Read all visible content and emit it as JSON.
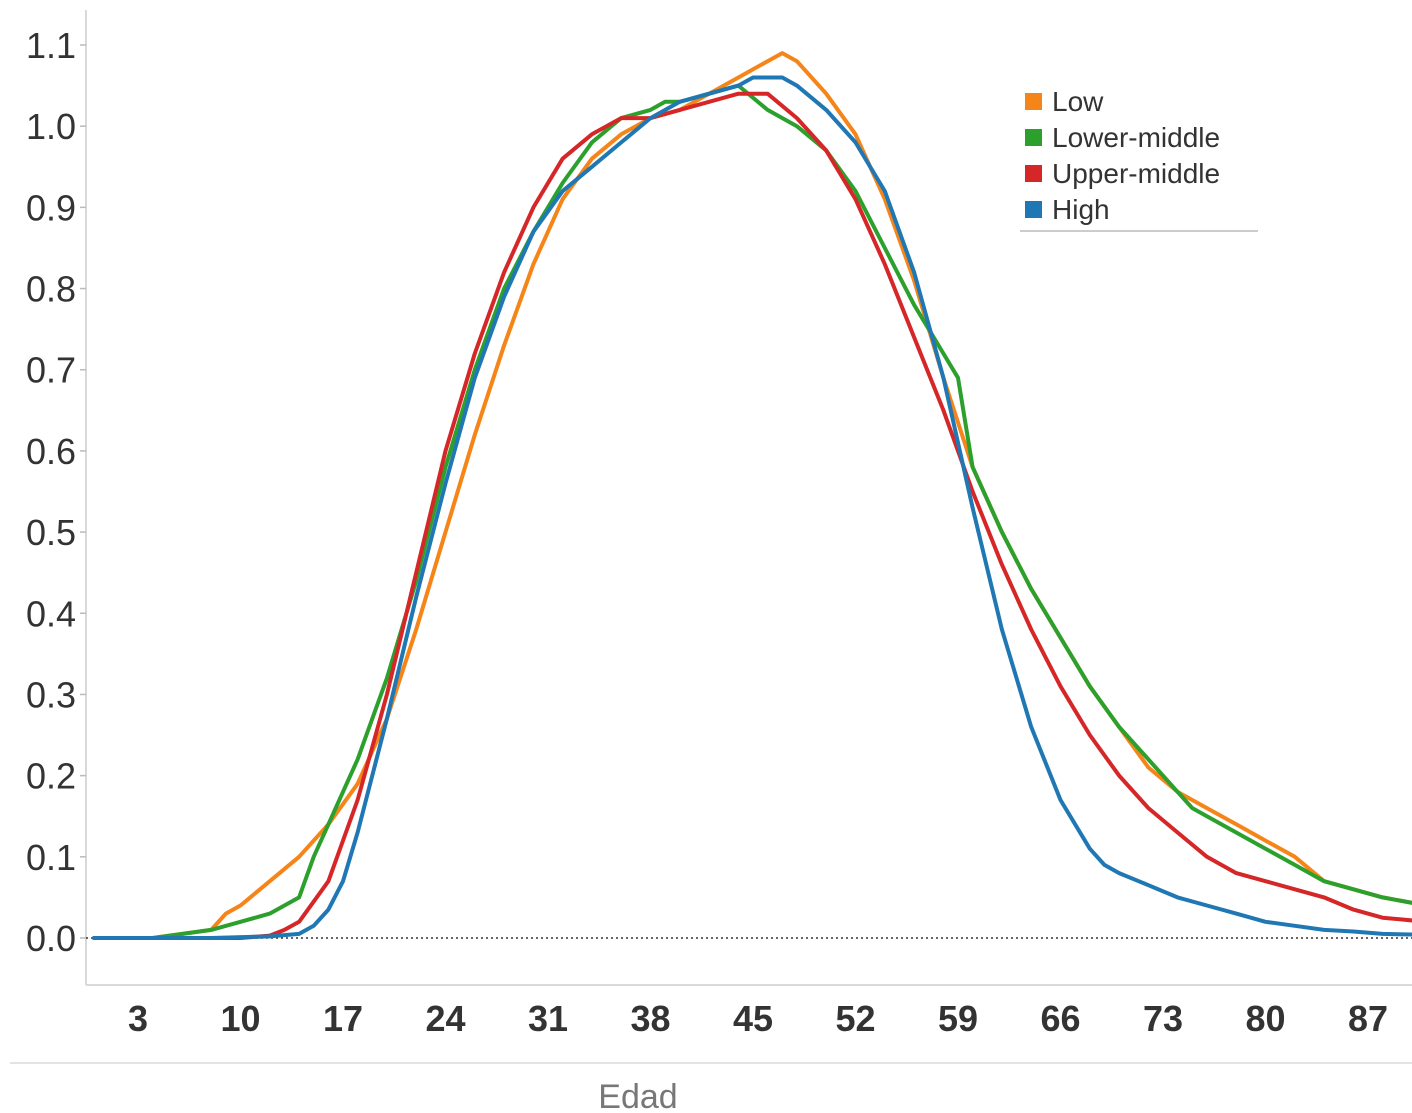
{
  "chart_data": {
    "type": "line",
    "xlabel": "Edad",
    "ylabel": "",
    "xlim": [
      0,
      91
    ],
    "ylim": [
      -0.05,
      1.12
    ],
    "x_ticks": [
      3,
      10,
      17,
      24,
      31,
      38,
      45,
      52,
      59,
      66,
      73,
      80,
      87
    ],
    "x_tick_labels": [
      "3",
      "10",
      "17",
      "24",
      "31",
      "38",
      "45",
      "52",
      "59",
      "66",
      "73",
      "80",
      "87"
    ],
    "y_ticks": [
      0.0,
      0.1,
      0.2,
      0.3,
      0.4,
      0.5,
      0.6,
      0.7,
      0.8,
      0.9,
      1.0,
      1.1
    ],
    "y_tick_labels": [
      "0.0",
      "0.1",
      "0.2",
      "0.3",
      "0.4",
      "0.5",
      "0.6",
      "0.7",
      "0.8",
      "0.9",
      "1.0",
      "1.1"
    ],
    "reference_line": 0.0,
    "grid": false,
    "legend_position": "top-right",
    "series": [
      {
        "name": "Low",
        "color": "#f58518",
        "x": [
          0,
          4,
          8,
          9,
          10,
          12,
          14,
          16,
          18,
          20,
          22,
          24,
          26,
          28,
          30,
          32,
          34,
          36,
          38,
          40,
          42,
          44,
          46,
          47,
          48,
          50,
          52,
          54,
          56,
          58,
          60,
          62,
          64,
          66,
          68,
          70,
          72,
          74,
          76,
          78,
          80,
          82,
          84,
          86,
          88,
          91
        ],
        "y": [
          0.0,
          0.0,
          0.01,
          0.03,
          0.04,
          0.07,
          0.1,
          0.14,
          0.19,
          0.27,
          0.38,
          0.5,
          0.62,
          0.73,
          0.83,
          0.91,
          0.96,
          0.99,
          1.01,
          1.02,
          1.04,
          1.06,
          1.08,
          1.09,
          1.08,
          1.04,
          0.99,
          0.91,
          0.81,
          0.69,
          0.58,
          0.5,
          0.43,
          0.37,
          0.31,
          0.26,
          0.21,
          0.18,
          0.16,
          0.14,
          0.12,
          0.1,
          0.07,
          0.06,
          0.05,
          0.04
        ]
      },
      {
        "name": "Lower-middle",
        "color": "#2ca02c",
        "x": [
          0,
          4,
          8,
          10,
          12,
          14,
          15,
          16,
          18,
          20,
          22,
          24,
          26,
          28,
          30,
          32,
          34,
          36,
          38,
          39,
          40,
          42,
          44,
          46,
          48,
          50,
          52,
          54,
          56,
          58,
          59,
          60,
          62,
          64,
          66,
          68,
          70,
          72,
          74,
          75,
          76,
          78,
          80,
          82,
          84,
          86,
          88,
          91
        ],
        "y": [
          0.0,
          0.0,
          0.01,
          0.02,
          0.03,
          0.05,
          0.1,
          0.14,
          0.22,
          0.32,
          0.44,
          0.58,
          0.7,
          0.8,
          0.87,
          0.93,
          0.98,
          1.01,
          1.02,
          1.03,
          1.03,
          1.04,
          1.05,
          1.02,
          1.0,
          0.97,
          0.92,
          0.85,
          0.78,
          0.72,
          0.69,
          0.58,
          0.5,
          0.43,
          0.37,
          0.31,
          0.26,
          0.22,
          0.18,
          0.16,
          0.15,
          0.13,
          0.11,
          0.09,
          0.07,
          0.06,
          0.05,
          0.04
        ]
      },
      {
        "name": "Upper-middle",
        "color": "#d62728",
        "x": [
          0,
          4,
          8,
          10,
          12,
          13,
          14,
          16,
          18,
          20,
          22,
          24,
          26,
          28,
          30,
          32,
          34,
          36,
          38,
          40,
          42,
          44,
          46,
          48,
          50,
          52,
          54,
          56,
          58,
          60,
          62,
          64,
          66,
          68,
          70,
          72,
          74,
          76,
          78,
          80,
          82,
          84,
          86,
          88,
          91
        ],
        "y": [
          0.0,
          0.0,
          0.0,
          0.0,
          0.003,
          0.01,
          0.02,
          0.07,
          0.17,
          0.3,
          0.45,
          0.6,
          0.72,
          0.82,
          0.9,
          0.96,
          0.99,
          1.01,
          1.01,
          1.02,
          1.03,
          1.04,
          1.04,
          1.01,
          0.97,
          0.91,
          0.83,
          0.74,
          0.65,
          0.55,
          0.46,
          0.38,
          0.31,
          0.25,
          0.2,
          0.16,
          0.13,
          0.1,
          0.08,
          0.07,
          0.06,
          0.05,
          0.035,
          0.025,
          0.02
        ]
      },
      {
        "name": "High",
        "color": "#1f77b4",
        "x": [
          0,
          4,
          8,
          12,
          14,
          15,
          16,
          17,
          18,
          20,
          22,
          24,
          26,
          28,
          30,
          32,
          34,
          36,
          38,
          40,
          42,
          44,
          45,
          46,
          47,
          48,
          50,
          52,
          54,
          56,
          58,
          60,
          62,
          64,
          66,
          68,
          69,
          70,
          72,
          74,
          76,
          78,
          80,
          82,
          84,
          86,
          88,
          91
        ],
        "y": [
          0.0,
          0.0,
          0.0,
          0.002,
          0.005,
          0.015,
          0.035,
          0.07,
          0.13,
          0.27,
          0.42,
          0.56,
          0.69,
          0.79,
          0.87,
          0.92,
          0.95,
          0.98,
          1.01,
          1.03,
          1.04,
          1.05,
          1.06,
          1.06,
          1.06,
          1.05,
          1.02,
          0.98,
          0.92,
          0.82,
          0.69,
          0.53,
          0.38,
          0.26,
          0.17,
          0.11,
          0.09,
          0.08,
          0.065,
          0.05,
          0.04,
          0.03,
          0.02,
          0.015,
          0.01,
          0.008,
          0.005,
          0.004
        ]
      }
    ]
  }
}
